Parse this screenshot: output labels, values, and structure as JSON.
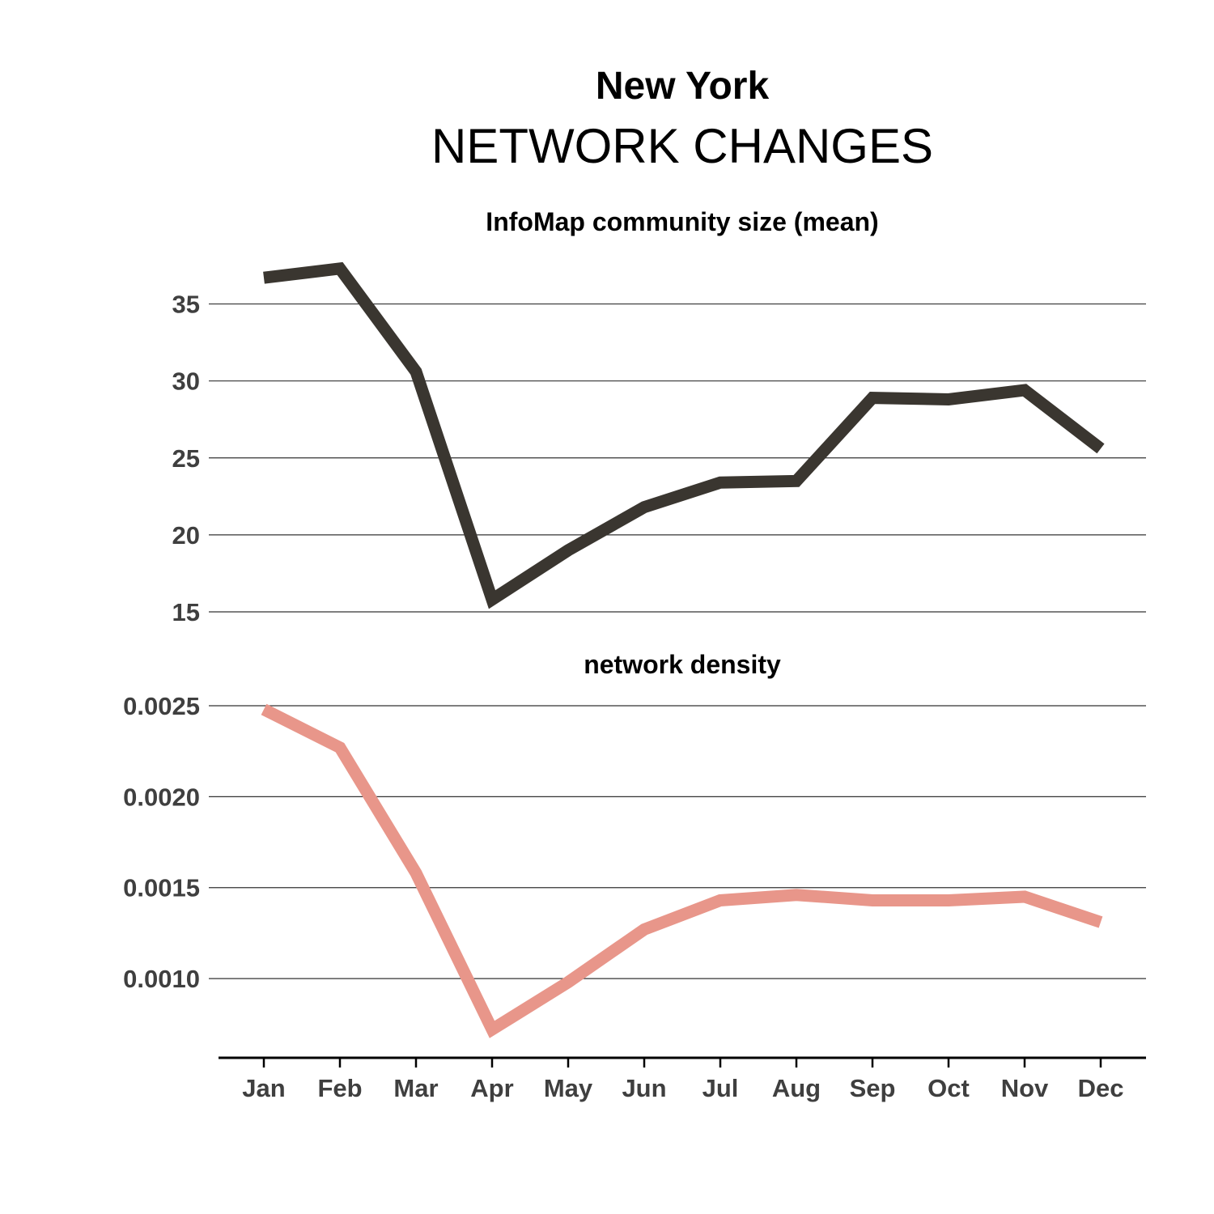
{
  "title": "New York",
  "subtitle": "NETWORK CHANGES",
  "chart_data": [
    {
      "type": "line",
      "title": "InfoMap community size (mean)",
      "categories": [
        "Jan",
        "Feb",
        "Mar",
        "Apr",
        "May",
        "Jun",
        "Jul",
        "Aug",
        "Sep",
        "Oct",
        "Nov",
        "Dec"
      ],
      "values": [
        36.7,
        37.3,
        30.6,
        15.8,
        19.0,
        21.8,
        23.4,
        23.5,
        28.9,
        28.8,
        29.4,
        25.6
      ],
      "yticks": [
        15,
        20,
        25,
        30,
        35
      ],
      "ytick_labels": [
        "15",
        "20",
        "25",
        "30",
        "35"
      ],
      "ylim": [
        15,
        37.5
      ],
      "grid": true,
      "color": "#3a3630"
    },
    {
      "type": "line",
      "title": "network density",
      "categories": [
        "Jan",
        "Feb",
        "Mar",
        "Apr",
        "May",
        "Jun",
        "Jul",
        "Aug",
        "Sep",
        "Oct",
        "Nov",
        "Dec"
      ],
      "values": [
        0.00248,
        0.00227,
        0.00158,
        0.00072,
        0.00098,
        0.00127,
        0.00143,
        0.00146,
        0.00143,
        0.00143,
        0.00145,
        0.00131
      ],
      "yticks": [
        0.001,
        0.0015,
        0.002,
        0.0025
      ],
      "ytick_labels": [
        "0.0010",
        "0.0015",
        "0.0020",
        "0.0025"
      ],
      "ylim": [
        0.00064,
        0.0025
      ],
      "grid": true,
      "color": "#e8968a"
    }
  ]
}
